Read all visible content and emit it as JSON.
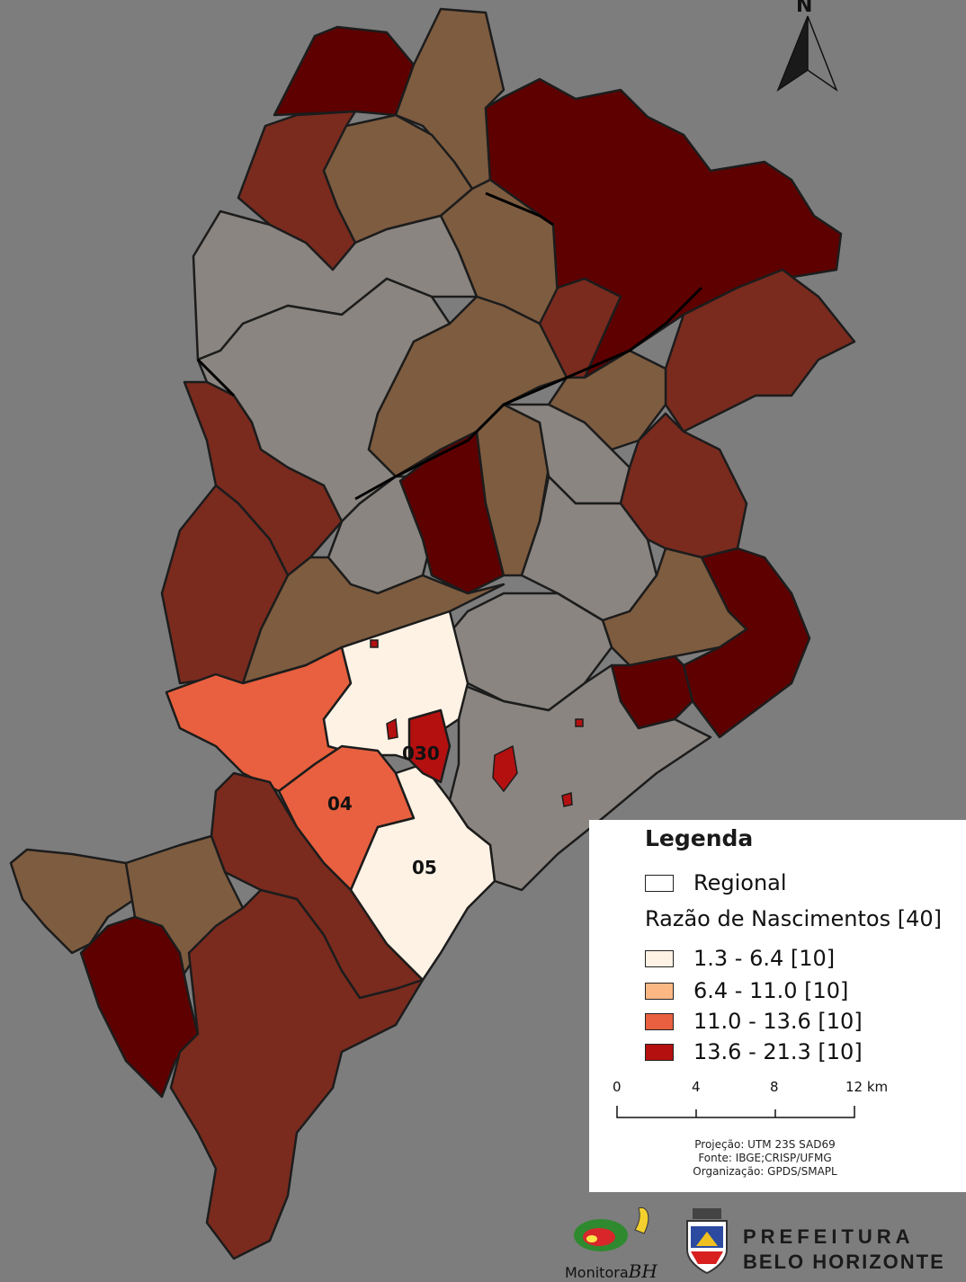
{
  "map": {
    "north_label": "N",
    "region_labels": {
      "r03": "030",
      "r04": "04",
      "r05": "05"
    }
  },
  "legend": {
    "title": "Legenda",
    "regional_label": "Regional",
    "subtitle": "Razão de Nascimentos [40]",
    "classes": [
      {
        "label": "1.3 - 6.4  [10]",
        "color": "#fdf2e4"
      },
      {
        "label": "6.4 - 11.0  [10]",
        "color": "#fcb884"
      },
      {
        "label": "11.0 - 13.6  [10]",
        "color": "#e8603f"
      },
      {
        "label": "13.6 - 21.3  [10]",
        "color": "#b41010"
      }
    ],
    "scale_ticks": [
      "0",
      "4",
      "8",
      "12 km"
    ],
    "credits": [
      "Projeção: UTM 23S SAD69",
      "Fonte: IBGE;CRISP/UFMG",
      "Organização: GPDS/SMAPL"
    ]
  },
  "logos": {
    "monitora": "Monitora",
    "monitora_suffix": "BH",
    "pbh_line1": "PREFEITURA",
    "pbh_line2": "BELO HORIZONTE"
  },
  "colors": {
    "background": "#7d7d7d",
    "dark_red": "#5e0000",
    "brown_red": "#7a2b1e",
    "tan": "#7e5c40",
    "grey": "#8a8580",
    "cream": "#fdf2e4",
    "orange": "#e8603f",
    "highlight_red": "#b41010"
  }
}
